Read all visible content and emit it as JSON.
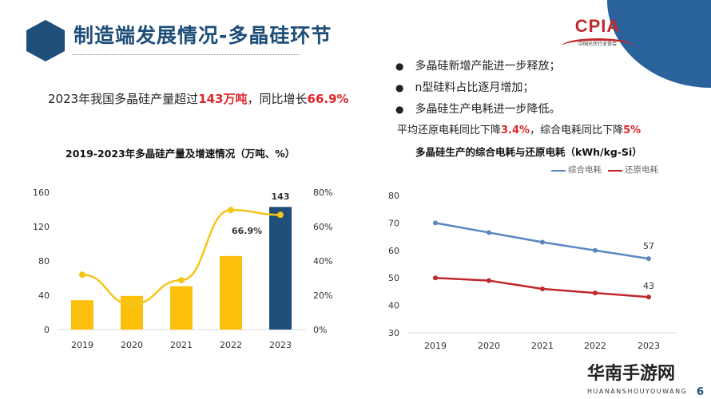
{
  "header": {
    "title": "制造端发展情况-多晶硅环节",
    "headline_pre": "2023年我国多晶硅产量超过",
    "headline_val1": "143万吨",
    "headline_mid": "，同比增长",
    "headline_val2": "66.9%"
  },
  "logo": {
    "text": "CPIA",
    "sub": "中国光伏行业协会"
  },
  "bullets": [
    "多晶硅新增产能进一步释放；",
    "n型硅料占比逐月增加；",
    "多晶硅生产电耗进一步降低。"
  ],
  "subnote": {
    "pre": "平均还原电耗同比下降",
    "v1": "3.4%",
    "mid": "，综合电耗同比下降",
    "v2": "5%"
  },
  "watermark": {
    "brand": "华南手游网",
    "brand_sub": "HUANANSHOUYOUWANG"
  },
  "page_number": "6",
  "colors": {
    "title": "#1f4e79",
    "bar": "#fbbf0c",
    "bar_highlight": "#1f4e79",
    "growth_line": "#f5c518",
    "line_total": "#5b86c0",
    "line_reduction": "#c0282d",
    "accent_red": "#e0262c"
  },
  "chart_data": [
    {
      "type": "bar",
      "title": "2019-2023年多晶硅产量及增速情况（万吨、%）",
      "categories": [
        "2019",
        "2020",
        "2021",
        "2022",
        "2023"
      ],
      "series": [
        {
          "type": "bar",
          "axis": "left",
          "values": [
            34.2,
            39.2,
            50.5,
            85.7,
            143
          ]
        },
        {
          "type": "line",
          "axis": "right",
          "values": [
            32,
            14.6,
            28.8,
            69.7,
            66.9
          ]
        }
      ],
      "ylim": [
        0,
        160
      ],
      "yticks": [
        "0",
        "40",
        "80",
        "120",
        "160"
      ],
      "y2lim": [
        0,
        80
      ],
      "y2ticks": [
        "0%",
        "20%",
        "40%",
        "60%",
        "80%"
      ],
      "data_labels": {
        "bar_2023": "143",
        "growth_2023": "66.9%"
      },
      "grid": false
    },
    {
      "type": "line",
      "title": "多晶硅生产的综合电耗与还原电耗（kWh/kg-Si）",
      "categories": [
        "2019",
        "2020",
        "2021",
        "2022",
        "2023"
      ],
      "series": [
        {
          "name": "综合电耗",
          "values": [
            70,
            66.5,
            63,
            60,
            57
          ]
        },
        {
          "name": "还原电耗",
          "values": [
            50,
            49,
            46,
            44.5,
            43
          ]
        }
      ],
      "ylim": [
        30,
        80
      ],
      "yticks": [
        "30",
        "40",
        "50",
        "60",
        "70",
        "80"
      ],
      "data_labels": {
        "total_2023": "57",
        "reduction_2023": "43"
      },
      "legend": "top-right",
      "grid": false
    }
  ]
}
